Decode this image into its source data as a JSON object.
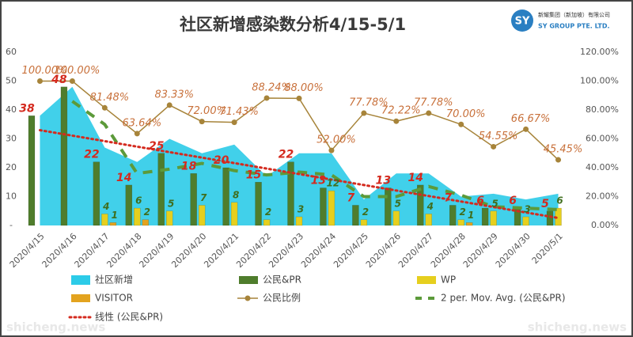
{
  "chart_data": {
    "type": "combo",
    "title": "社区新增感染数分析4/15-5/1",
    "logo": {
      "name_cn": "新耀集团（新加坡）有限公司",
      "name_en": "SY GROUP PTE. LTD."
    },
    "watermark": "shicheng.news",
    "categories": [
      "2020/4/15",
      "2020/4/16",
      "2020/4/17",
      "2020/4/18",
      "2020/4/19",
      "2020/4/20",
      "2020/4/21",
      "2020/4/22",
      "2020/4/23",
      "2020/4/24",
      "2020/4/25",
      "2020/4/26",
      "2020/4/27",
      "2020/4/28",
      "2020/4/29",
      "2020/4/30",
      "2020/5/1"
    ],
    "ylim": [
      0,
      60
    ],
    "yticks": [
      {
        "value": 0,
        "label": "-"
      },
      10,
      20,
      30,
      40,
      50,
      60
    ],
    "y2lim": [
      0,
      120
    ],
    "y2ticks": [
      {
        "value": 0,
        "label": "0.00%"
      },
      {
        "value": 20,
        "label": "20.00%"
      },
      {
        "value": 40,
        "label": "40.00%"
      },
      {
        "value": 60,
        "label": "60.00%"
      },
      {
        "value": 80,
        "label": "80.00%"
      },
      {
        "value": 100,
        "label": "100.00%"
      },
      {
        "value": 120,
        "label": "120.00%"
      }
    ],
    "series": [
      {
        "name": "社区新增",
        "kind": "area",
        "color": "#2ccbe8",
        "values": [
          38,
          48,
          27,
          22,
          30,
          25,
          28,
          17,
          25,
          25,
          9,
          18,
          18,
          10,
          11,
          9,
          11
        ]
      },
      {
        "name": "公民&PR",
        "kind": "bar",
        "color": "#4f7d2c",
        "label_color": "#d42a1e",
        "values": [
          38,
          48,
          22,
          14,
          25,
          18,
          20,
          15,
          22,
          13,
          7,
          13,
          14,
          7,
          6,
          6,
          5
        ]
      },
      {
        "name": "WP",
        "kind": "bar",
        "color": "#e6cf1e",
        "label_color": "#3f6e1e",
        "values": [
          0,
          0,
          4,
          6,
          5,
          7,
          8,
          2,
          3,
          12,
          2,
          5,
          4,
          2,
          5,
          3,
          6
        ]
      },
      {
        "name": "VISITOR",
        "kind": "bar",
        "color": "#e3a31f",
        "label_color": "#3f6e1e",
        "values": [
          0,
          0,
          1,
          2,
          0,
          0,
          0,
          0,
          0,
          0,
          0,
          0,
          0,
          1,
          0,
          0,
          0
        ]
      },
      {
        "name": "公民比例",
        "kind": "line",
        "axis": "y2",
        "color": "#a7843a",
        "label_color": "#c8703a",
        "values": [
          100,
          100,
          81.48,
          63.64,
          83.33,
          72,
          71.43,
          88.24,
          88,
          52,
          77.78,
          72.22,
          77.78,
          70,
          54.55,
          66.67,
          45.45
        ],
        "value_labels": [
          "100.00%",
          "100.00%",
          "81.48%",
          "63.64%",
          "83.33%",
          "72.00%",
          "71.43%",
          "88.24%",
          "88.00%",
          "52.00%",
          "77.78%",
          "72.22%",
          "77.78%",
          "70.00%",
          "54.55%",
          "66.67%",
          "45.45%"
        ]
      },
      {
        "name": "2 per. Mov. Avg. (公民&PR)",
        "kind": "movavg",
        "color": "#5c9a3a",
        "values": [
          null,
          43,
          35,
          18,
          19.5,
          21.5,
          19,
          17.5,
          18.5,
          17.5,
          10,
          10,
          13.5,
          10.5,
          6.5,
          6,
          5.5
        ]
      },
      {
        "name": "线性 (公民&PR)",
        "kind": "trend",
        "color": "#d42a1e",
        "values": [
          33,
          31.1,
          29.2,
          27.3,
          25.4,
          23.5,
          21.6,
          19.7,
          17.8,
          15.9,
          14,
          12.1,
          10.2,
          8.3,
          6.4,
          4.5,
          2.6
        ]
      }
    ]
  }
}
